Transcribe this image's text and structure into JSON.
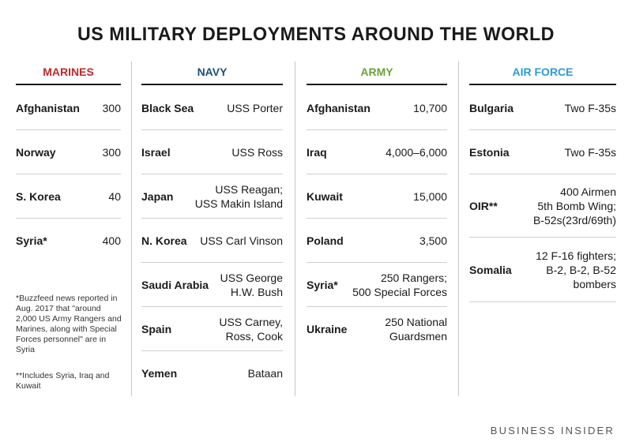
{
  "title": "US MILITARY DEPLOYMENTS AROUND THE WORLD",
  "colors": {
    "marines": "#c0272d",
    "navy": "#1f4e79",
    "army": "#6aa33a",
    "air_force": "#2e9ad6"
  },
  "marines": {
    "header": "MARINES",
    "rows": [
      {
        "place": "Afghanistan",
        "value": "300"
      },
      {
        "place": "Norway",
        "value": "300"
      },
      {
        "place": "S. Korea",
        "value": "40"
      },
      {
        "place": "Syria*",
        "value": "400"
      }
    ],
    "footnote1": "*Buzzfeed news reported in Aug. 2017 that \"around 2,000 US Army Rangers and Marines, along with Special Forces personnel\" are in Syria",
    "footnote2": "**Includes Syria, Iraq and Kuwait"
  },
  "navy": {
    "header": "NAVY",
    "rows": [
      {
        "place": "Black Sea",
        "value": "USS Porter"
      },
      {
        "place": "Israel",
        "value": "USS Ross"
      },
      {
        "place": "Japan",
        "value": "USS Reagan;\nUSS Makin Island"
      },
      {
        "place": "N. Korea",
        "value": "USS Carl Vinson"
      },
      {
        "place": "Saudi Arabia",
        "value": "USS George\nH.W. Bush"
      },
      {
        "place": "Spain",
        "value": "USS Carney,\nRoss, Cook"
      },
      {
        "place": "Yemen",
        "value": "Bataan"
      }
    ]
  },
  "army": {
    "header": "ARMY",
    "rows": [
      {
        "place": "Afghanistan",
        "value": "10,700"
      },
      {
        "place": "Iraq",
        "value": "4,000–6,000"
      },
      {
        "place": "Kuwait",
        "value": "15,000"
      },
      {
        "place": "Poland",
        "value": "3,500"
      },
      {
        "place": "Syria*",
        "value": "250 Rangers;\n500 Special Forces"
      },
      {
        "place": "Ukraine",
        "value": "250 National\nGuardsmen"
      }
    ]
  },
  "air_force": {
    "header": "AIR FORCE",
    "rows": [
      {
        "place": "Bulgaria",
        "value": "Two F-35s"
      },
      {
        "place": "Estonia",
        "value": "Two F-35s"
      },
      {
        "place": "OIR**",
        "value": "400 Airmen\n5th Bomb Wing;\nB-52s(23rd/69th)"
      },
      {
        "place": "Somalia",
        "value": "12 F-16 fighters;\nB-2, B-2, B-52\nbombers"
      }
    ]
  },
  "brand": "BUSINESS INSIDER"
}
